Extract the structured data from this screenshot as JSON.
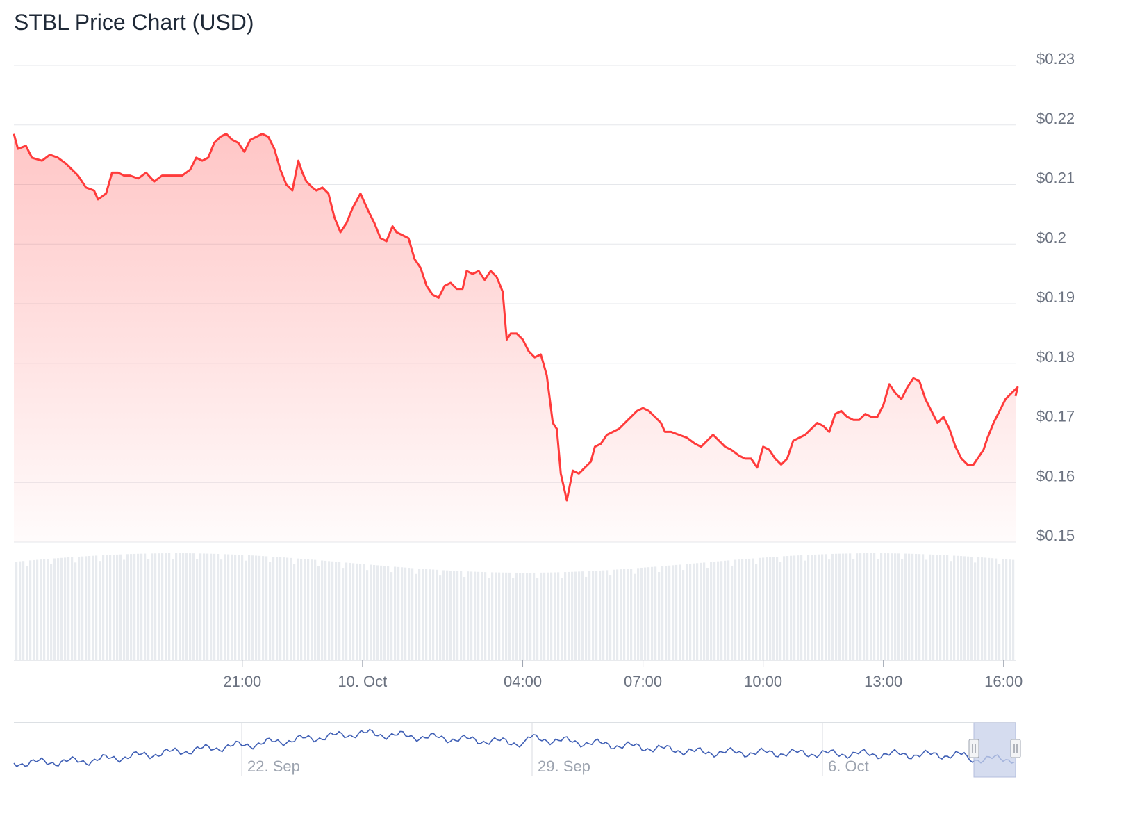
{
  "chart_data": {
    "type": "line",
    "title": "STBL Price Chart (USD)",
    "ylim": [
      0.15,
      0.23
    ],
    "yticks": [
      "$0.23",
      "$0.22",
      "$0.21",
      "$0.2",
      "$0.19",
      "$0.18",
      "$0.17",
      "$0.16",
      "$0.15"
    ],
    "ytick_values": [
      0.23,
      0.22,
      0.21,
      0.2,
      0.19,
      0.18,
      0.17,
      0.16,
      0.15
    ],
    "x_range_hours": [
      15.3,
      40.3
    ],
    "xticks": [
      {
        "label": "21:00",
        "h": 21
      },
      {
        "label": "10. Oct",
        "h": 24
      },
      {
        "label": "04:00",
        "h": 28
      },
      {
        "label": "07:00",
        "h": 31
      },
      {
        "label": "10:00",
        "h": 34
      },
      {
        "label": "13:00",
        "h": 37
      },
      {
        "label": "16:00",
        "h": 40
      }
    ],
    "series": [
      {
        "color": "#ff3b3b",
        "points": [
          [
            15.3,
            0.2185
          ],
          [
            15.4,
            0.216
          ],
          [
            15.6,
            0.2165
          ],
          [
            15.75,
            0.2145
          ],
          [
            16.0,
            0.214
          ],
          [
            16.2,
            0.215
          ],
          [
            16.4,
            0.2145
          ],
          [
            16.6,
            0.2135
          ],
          [
            16.9,
            0.2115
          ],
          [
            17.1,
            0.2095
          ],
          [
            17.3,
            0.209
          ],
          [
            17.4,
            0.2075
          ],
          [
            17.6,
            0.2085
          ],
          [
            17.75,
            0.212
          ],
          [
            17.9,
            0.212
          ],
          [
            18.05,
            0.2115
          ],
          [
            18.2,
            0.2115
          ],
          [
            18.4,
            0.211
          ],
          [
            18.6,
            0.212
          ],
          [
            18.8,
            0.2105
          ],
          [
            19.0,
            0.2115
          ],
          [
            19.2,
            0.2115
          ],
          [
            19.5,
            0.2115
          ],
          [
            19.7,
            0.2125
          ],
          [
            19.85,
            0.2145
          ],
          [
            20.0,
            0.214
          ],
          [
            20.15,
            0.2145
          ],
          [
            20.3,
            0.217
          ],
          [
            20.45,
            0.218
          ],
          [
            20.6,
            0.2185
          ],
          [
            20.75,
            0.2175
          ],
          [
            20.9,
            0.217
          ],
          [
            21.05,
            0.2155
          ],
          [
            21.2,
            0.2175
          ],
          [
            21.35,
            0.218
          ],
          [
            21.5,
            0.2185
          ],
          [
            21.65,
            0.218
          ],
          [
            21.8,
            0.216
          ],
          [
            21.95,
            0.2125
          ],
          [
            22.1,
            0.21
          ],
          [
            22.25,
            0.209
          ],
          [
            22.4,
            0.214
          ],
          [
            22.5,
            0.212
          ],
          [
            22.6,
            0.2105
          ],
          [
            22.75,
            0.2095
          ],
          [
            22.85,
            0.209
          ],
          [
            23.0,
            0.2095
          ],
          [
            23.15,
            0.2085
          ],
          [
            23.3,
            0.2045
          ],
          [
            23.45,
            0.202
          ],
          [
            23.6,
            0.2035
          ],
          [
            23.75,
            0.206
          ],
          [
            23.95,
            0.2085
          ],
          [
            24.15,
            0.2055
          ],
          [
            24.3,
            0.2035
          ],
          [
            24.45,
            0.201
          ],
          [
            24.6,
            0.2005
          ],
          [
            24.75,
            0.203
          ],
          [
            24.85,
            0.202
          ],
          [
            25.0,
            0.2015
          ],
          [
            25.15,
            0.201
          ],
          [
            25.3,
            0.1975
          ],
          [
            25.45,
            0.196
          ],
          [
            25.6,
            0.193
          ],
          [
            25.75,
            0.1915
          ],
          [
            25.9,
            0.191
          ],
          [
            26.05,
            0.193
          ],
          [
            26.2,
            0.1935
          ],
          [
            26.35,
            0.1925
          ],
          [
            26.5,
            0.1925
          ],
          [
            26.6,
            0.1955
          ],
          [
            26.75,
            0.195
          ],
          [
            26.9,
            0.1955
          ],
          [
            27.05,
            0.194
          ],
          [
            27.2,
            0.1955
          ],
          [
            27.35,
            0.1945
          ],
          [
            27.5,
            0.192
          ],
          [
            27.6,
            0.184
          ],
          [
            27.7,
            0.185
          ],
          [
            27.85,
            0.185
          ],
          [
            28.0,
            0.184
          ],
          [
            28.15,
            0.182
          ],
          [
            28.3,
            0.181
          ],
          [
            28.45,
            0.1815
          ],
          [
            28.6,
            0.178
          ],
          [
            28.75,
            0.17
          ],
          [
            28.85,
            0.169
          ],
          [
            28.95,
            0.1615
          ],
          [
            29.1,
            0.157
          ],
          [
            29.25,
            0.162
          ],
          [
            29.4,
            0.1615
          ],
          [
            29.55,
            0.1625
          ],
          [
            29.7,
            0.1635
          ],
          [
            29.8,
            0.166
          ],
          [
            29.95,
            0.1665
          ],
          [
            30.1,
            0.168
          ],
          [
            30.25,
            0.1685
          ],
          [
            30.4,
            0.169
          ],
          [
            30.55,
            0.17
          ],
          [
            30.7,
            0.171
          ],
          [
            30.85,
            0.172
          ],
          [
            31.0,
            0.1725
          ],
          [
            31.15,
            0.172
          ],
          [
            31.3,
            0.171
          ],
          [
            31.45,
            0.17
          ],
          [
            31.55,
            0.1685
          ],
          [
            31.7,
            0.1685
          ],
          [
            31.9,
            0.168
          ],
          [
            32.1,
            0.1675
          ],
          [
            32.3,
            0.1665
          ],
          [
            32.45,
            0.166
          ],
          [
            32.6,
            0.167
          ],
          [
            32.75,
            0.168
          ],
          [
            32.9,
            0.167
          ],
          [
            33.05,
            0.166
          ],
          [
            33.2,
            0.1655
          ],
          [
            33.4,
            0.1645
          ],
          [
            33.55,
            0.164
          ],
          [
            33.7,
            0.164
          ],
          [
            33.85,
            0.1625
          ],
          [
            34.0,
            0.166
          ],
          [
            34.15,
            0.1655
          ],
          [
            34.3,
            0.164
          ],
          [
            34.45,
            0.163
          ],
          [
            34.6,
            0.164
          ],
          [
            34.75,
            0.167
          ],
          [
            34.9,
            0.1675
          ],
          [
            35.05,
            0.168
          ],
          [
            35.2,
            0.169
          ],
          [
            35.35,
            0.17
          ],
          [
            35.5,
            0.1695
          ],
          [
            35.65,
            0.1685
          ],
          [
            35.8,
            0.1715
          ],
          [
            35.95,
            0.172
          ],
          [
            36.1,
            0.171
          ],
          [
            36.25,
            0.1705
          ],
          [
            36.4,
            0.1705
          ],
          [
            36.55,
            0.1715
          ],
          [
            36.7,
            0.171
          ],
          [
            36.85,
            0.171
          ],
          [
            37.0,
            0.173
          ],
          [
            37.15,
            0.1765
          ],
          [
            37.3,
            0.175
          ],
          [
            37.45,
            0.174
          ],
          [
            37.6,
            0.176
          ],
          [
            37.75,
            0.1775
          ],
          [
            37.9,
            0.177
          ],
          [
            38.05,
            0.174
          ],
          [
            38.2,
            0.172
          ],
          [
            38.35,
            0.17
          ],
          [
            38.5,
            0.171
          ],
          [
            38.65,
            0.169
          ],
          [
            38.8,
            0.166
          ],
          [
            38.95,
            0.164
          ],
          [
            39.1,
            0.163
          ],
          [
            39.25,
            0.163
          ],
          [
            39.4,
            0.1645
          ],
          [
            39.5,
            0.1655
          ],
          [
            39.6,
            0.1675
          ],
          [
            39.75,
            0.17
          ],
          [
            39.9,
            0.172
          ],
          [
            40.05,
            0.174
          ],
          [
            40.2,
            0.175
          ],
          [
            40.35,
            0.176
          ],
          [
            40.3,
            0.1745
          ]
        ]
      }
    ],
    "navigator": {
      "labels": [
        "22. Sep",
        "29. Sep",
        "6. Oct"
      ]
    }
  }
}
